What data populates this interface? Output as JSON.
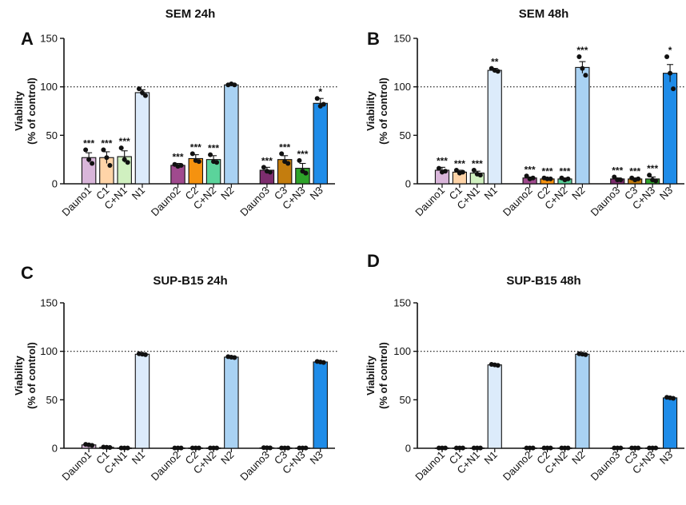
{
  "figure": {
    "ylabel_line1": "Viability",
    "ylabel_line2": "(% of control)",
    "yticks": [
      0,
      50,
      100,
      150
    ],
    "reference_value": 100
  },
  "chart_data": [
    {
      "panel": "A",
      "type": "bar",
      "title": "SEM 24h",
      "ylim": [
        0,
        150
      ],
      "reference_line": 100,
      "categories": [
        "Dauno1",
        "C1",
        "C+N1",
        "N1",
        "Dauno2",
        "C2",
        "C+N2",
        "N2",
        "Dauno3",
        "C3",
        "C+N3",
        "N3"
      ],
      "values": [
        27,
        27,
        28,
        94,
        19,
        26,
        25,
        102,
        14,
        25,
        16,
        83
      ],
      "errors": [
        5,
        6,
        6,
        3,
        2,
        4,
        4,
        1,
        3,
        4,
        5,
        5
      ],
      "points": [
        [
          35,
          25,
          21
        ],
        [
          35,
          27,
          19
        ],
        [
          37,
          25,
          22
        ],
        [
          98,
          94,
          91
        ],
        [
          20,
          18,
          19
        ],
        [
          31,
          24,
          23
        ],
        [
          30,
          23,
          22
        ],
        [
          102,
          103,
          102
        ],
        [
          17,
          13,
          12
        ],
        [
          31,
          23,
          21
        ],
        [
          24,
          13,
          11
        ],
        [
          88,
          80,
          82
        ]
      ],
      "significance": [
        "***",
        "***",
        "***",
        "",
        "***",
        "***",
        "***",
        "",
        "***",
        "***",
        "***",
        "*"
      ],
      "colors": [
        "#D9B6DA",
        "#FFD4A8",
        "#D0F0C0",
        "#DCEBFB",
        "#A04A8E",
        "#F5920F",
        "#5BD39B",
        "#A9D2F3",
        "#7D2D6E",
        "#C47D0E",
        "#2EA32A",
        "#1F8CE8"
      ]
    },
    {
      "panel": "B",
      "type": "bar",
      "title": "SEM 48h",
      "ylim": [
        0,
        150
      ],
      "reference_line": 100,
      "categories": [
        "Dauno1",
        "C1",
        "C+N1",
        "N1",
        "Dauno2",
        "C2",
        "C+N2",
        "N2",
        "Dauno3",
        "C3",
        "C+N3",
        "N3"
      ],
      "values": [
        14,
        12,
        11,
        117,
        6,
        5,
        5,
        120,
        5,
        5,
        5,
        114
      ],
      "errors": [
        3,
        2,
        2,
        2,
        1,
        1,
        1,
        6,
        1,
        1,
        2,
        9
      ],
      "points": [
        [
          16,
          12,
          13
        ],
        [
          14,
          11,
          12
        ],
        [
          14,
          10,
          9
        ],
        [
          119,
          117,
          116
        ],
        [
          8,
          5,
          6
        ],
        [
          6,
          5,
          5
        ],
        [
          6,
          4,
          5
        ],
        [
          131,
          119,
          112
        ],
        [
          7,
          4,
          4
        ],
        [
          6,
          4,
          5
        ],
        [
          9,
          4,
          3
        ],
        [
          131,
          114,
          98
        ]
      ],
      "significance": [
        "***",
        "***",
        "***",
        "**",
        "***",
        "***",
        "***",
        "***",
        "***",
        "***",
        "***",
        "*"
      ],
      "colors": [
        "#D9B6DA",
        "#FFD4A8",
        "#D0F0C0",
        "#DCEBFB",
        "#A04A8E",
        "#F5920F",
        "#5BD39B",
        "#A9D2F3",
        "#7D2D6E",
        "#C47D0E",
        "#2EA32A",
        "#1F8CE8"
      ]
    },
    {
      "panel": "C",
      "type": "bar",
      "title": "SUP-B15 24h",
      "ylim": [
        0,
        150
      ],
      "reference_line": 100,
      "categories": [
        "Dauno1",
        "C1",
        "C+N1",
        "N1",
        "Dauno2",
        "C2",
        "C+N2",
        "N2",
        "Dauno3",
        "C3",
        "C+N3",
        "N3"
      ],
      "values": [
        3.5,
        1,
        0.3,
        97,
        0.3,
        0.3,
        0.3,
        94,
        0.5,
        0.3,
        0.3,
        89
      ],
      "errors": [
        0.5,
        0.3,
        0.1,
        0.5,
        0.1,
        0.1,
        0.1,
        0.5,
        0.1,
        0.1,
        0.1,
        0.5
      ],
      "points": [
        [
          4,
          3.5,
          3
        ],
        [
          1.2,
          1,
          0.8
        ],
        [
          0.3,
          0.3,
          0.3
        ],
        [
          97.5,
          97,
          96.5
        ],
        [
          0.3,
          0.3,
          0.3
        ],
        [
          0.3,
          0.3,
          0.3
        ],
        [
          0.3,
          0.3,
          0.3
        ],
        [
          94.5,
          94,
          93.5
        ],
        [
          0.6,
          0.5,
          0.4
        ],
        [
          0.3,
          0.3,
          0.3
        ],
        [
          0.3,
          0.3,
          0.3
        ],
        [
          89.5,
          89,
          88.5
        ]
      ],
      "significance": [
        "",
        "",
        "",
        "",
        "",
        "",
        "",
        "",
        "",
        "",
        "",
        ""
      ],
      "colors": [
        "#D9B6DA",
        "#FFD4A8",
        "#D0F0C0",
        "#DCEBFB",
        "#A04A8E",
        "#F5920F",
        "#5BD39B",
        "#A9D2F3",
        "#7D2D6E",
        "#C47D0E",
        "#2EA32A",
        "#1F8CE8"
      ]
    },
    {
      "panel": "D",
      "type": "bar",
      "title": "SUP-B15 48h",
      "ylim": [
        0,
        150
      ],
      "reference_line": 100,
      "categories": [
        "Dauno1",
        "C1",
        "C+N1",
        "N1",
        "Dauno2",
        "C2",
        "C+N2",
        "N2",
        "Dauno3",
        "C3",
        "C+N3",
        "N3"
      ],
      "values": [
        0.3,
        0.3,
        0.3,
        86,
        0.3,
        0.3,
        0.3,
        97,
        0.3,
        0.3,
        0.3,
        52
      ],
      "errors": [
        0.1,
        0.1,
        0.1,
        0.5,
        0.1,
        0.1,
        0.1,
        0.5,
        0.1,
        0.1,
        0.1,
        0.5
      ],
      "points": [
        [
          0.3,
          0.3,
          0.3
        ],
        [
          0.3,
          0.3,
          0.3
        ],
        [
          0.3,
          0.3,
          0.3
        ],
        [
          86.5,
          86,
          85.5
        ],
        [
          0.3,
          0.3,
          0.3
        ],
        [
          0.3,
          0.3,
          0.3
        ],
        [
          0.3,
          0.3,
          0.3
        ],
        [
          97.5,
          97,
          96.5
        ],
        [
          0.3,
          0.3,
          0.3
        ],
        [
          0.3,
          0.3,
          0.3
        ],
        [
          0.3,
          0.3,
          0.3
        ],
        [
          52.5,
          52,
          51.5
        ]
      ],
      "significance": [
        "",
        "",
        "",
        "",
        "",
        "",
        "",
        "",
        "",
        "",
        "",
        ""
      ],
      "colors": [
        "#D9B6DA",
        "#FFD4A8",
        "#D0F0C0",
        "#DCEBFB",
        "#A04A8E",
        "#F5920F",
        "#5BD39B",
        "#A9D2F3",
        "#7D2D6E",
        "#C47D0E",
        "#2EA32A",
        "#1F8CE8"
      ]
    }
  ]
}
